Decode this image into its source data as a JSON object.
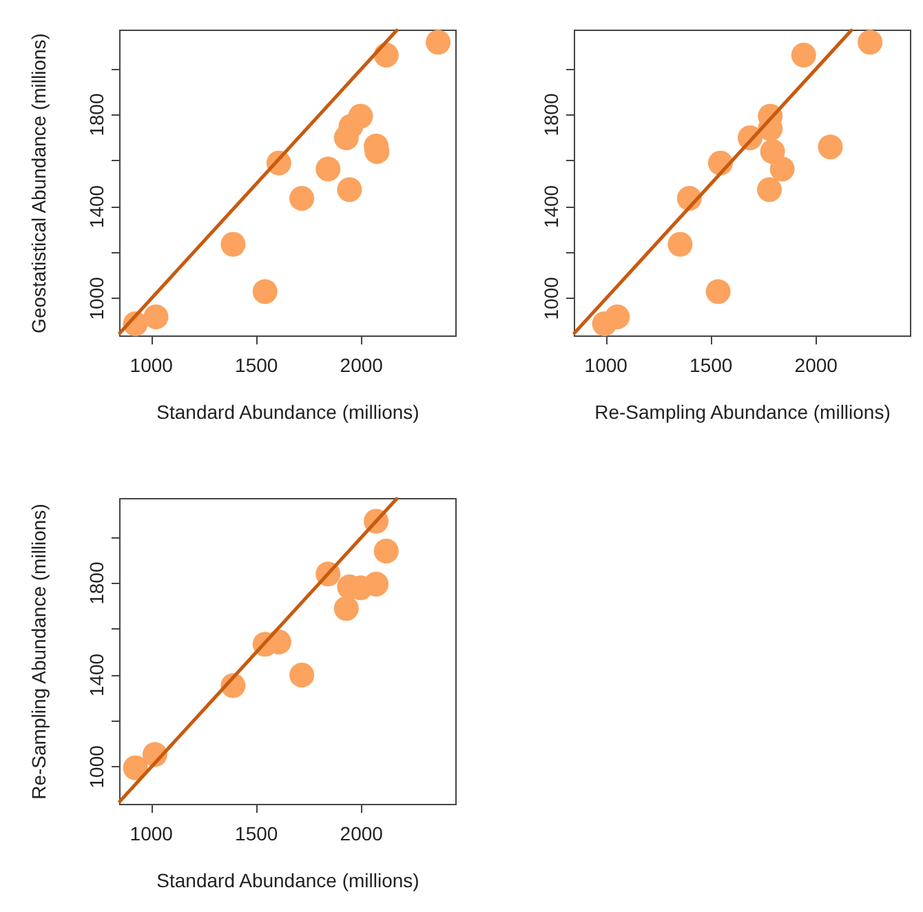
{
  "chart_data": [
    {
      "type": "scatter",
      "xlabel": "Standard Abundance (millions)",
      "ylabel": "Geostatistical Abundance (millions)",
      "xlim": [
        850,
        2450
      ],
      "ylim": [
        836,
        2168
      ],
      "xticks": [
        1000,
        1500,
        2000
      ],
      "yticks": [
        1000,
        {
          "value": 1200,
          "label": null
        },
        1400,
        {
          "value": 1600,
          "label": null
        },
        1800,
        {
          "value": 2000,
          "label": null
        }
      ],
      "grid": false,
      "series": [
        {
          "color": "#fba35f",
          "marker": "circle",
          "x": [
            924,
            1022,
            1389,
            1541,
            1607,
            1716,
            1841,
            1943,
            1928,
            1950,
            1996,
            2070,
            2074,
            2118,
            2365
          ],
          "values": [
            890,
            920,
            1236,
            1030,
            1590,
            1436,
            1564,
            1474,
            1700,
            1750,
            1794,
            1664,
            1640,
            2060,
            2116
          ]
        },
        {
          "type": "line",
          "color": "#c85a0f",
          "marker": "none",
          "x": [
            850,
            2168
          ],
          "values": [
            850,
            2168
          ]
        }
      ]
    },
    {
      "type": "scatter",
      "xlabel": "Re-Sampling Abundance (millions)",
      "xlim": [
        850,
        2450
      ],
      "ylim": [
        836,
        2168
      ],
      "xticks": [
        1000,
        1500,
        2000
      ],
      "yticks": [
        1000,
        {
          "value": 1200,
          "label": null
        },
        1400,
        {
          "value": 1600,
          "label": null
        },
        1800,
        {
          "value": 2000,
          "label": null
        }
      ],
      "grid": false,
      "series": [
        {
          "color": "#fba35f",
          "marker": "circle",
          "x": [
            993,
            1054,
            1353,
            1534,
            1545,
            1397,
            1839,
            1778,
            1686,
            1782,
            1782,
            2068,
            1793,
            1941,
            2257
          ],
          "values": [
            890,
            920,
            1236,
            1030,
            1590,
            1436,
            1564,
            1474,
            1700,
            1740,
            1794,
            1660,
            1640,
            2060,
            2116
          ]
        },
        {
          "type": "line",
          "color": "#c85a0f",
          "marker": "none",
          "x": [
            850,
            2168
          ],
          "values": [
            850,
            2168
          ]
        }
      ]
    },
    {
      "type": "scatter",
      "xlabel": "Standard Abundance (millions)",
      "ylabel": "Re-Sampling Abundance (millions)",
      "xlim": [
        850,
        2450
      ],
      "ylim": [
        836,
        2168
      ],
      "xticks": [
        1000,
        1500,
        2000
      ],
      "yticks": [
        1000,
        {
          "value": 1200,
          "label": null
        },
        1400,
        {
          "value": 1600,
          "label": null
        },
        1800,
        {
          "value": 2000,
          "label": null
        }
      ],
      "grid": false,
      "series": [
        {
          "color": "#fba35f",
          "marker": "circle",
          "x": [
            924,
            1017,
            1389,
            1541,
            1607,
            1716,
            1841,
            1928,
            1943,
            1996,
            2070,
            2070,
            2118
          ],
          "values": [
            996,
            1054,
            1354,
            1534,
            1544,
            1400,
            1840,
            1690,
            1784,
            1780,
            1796,
            2070,
            1940
          ]
        },
        {
          "type": "line",
          "color": "#c85a0f",
          "marker": "none",
          "x": [
            850,
            2168
          ],
          "values": [
            850,
            2168
          ]
        }
      ]
    }
  ]
}
